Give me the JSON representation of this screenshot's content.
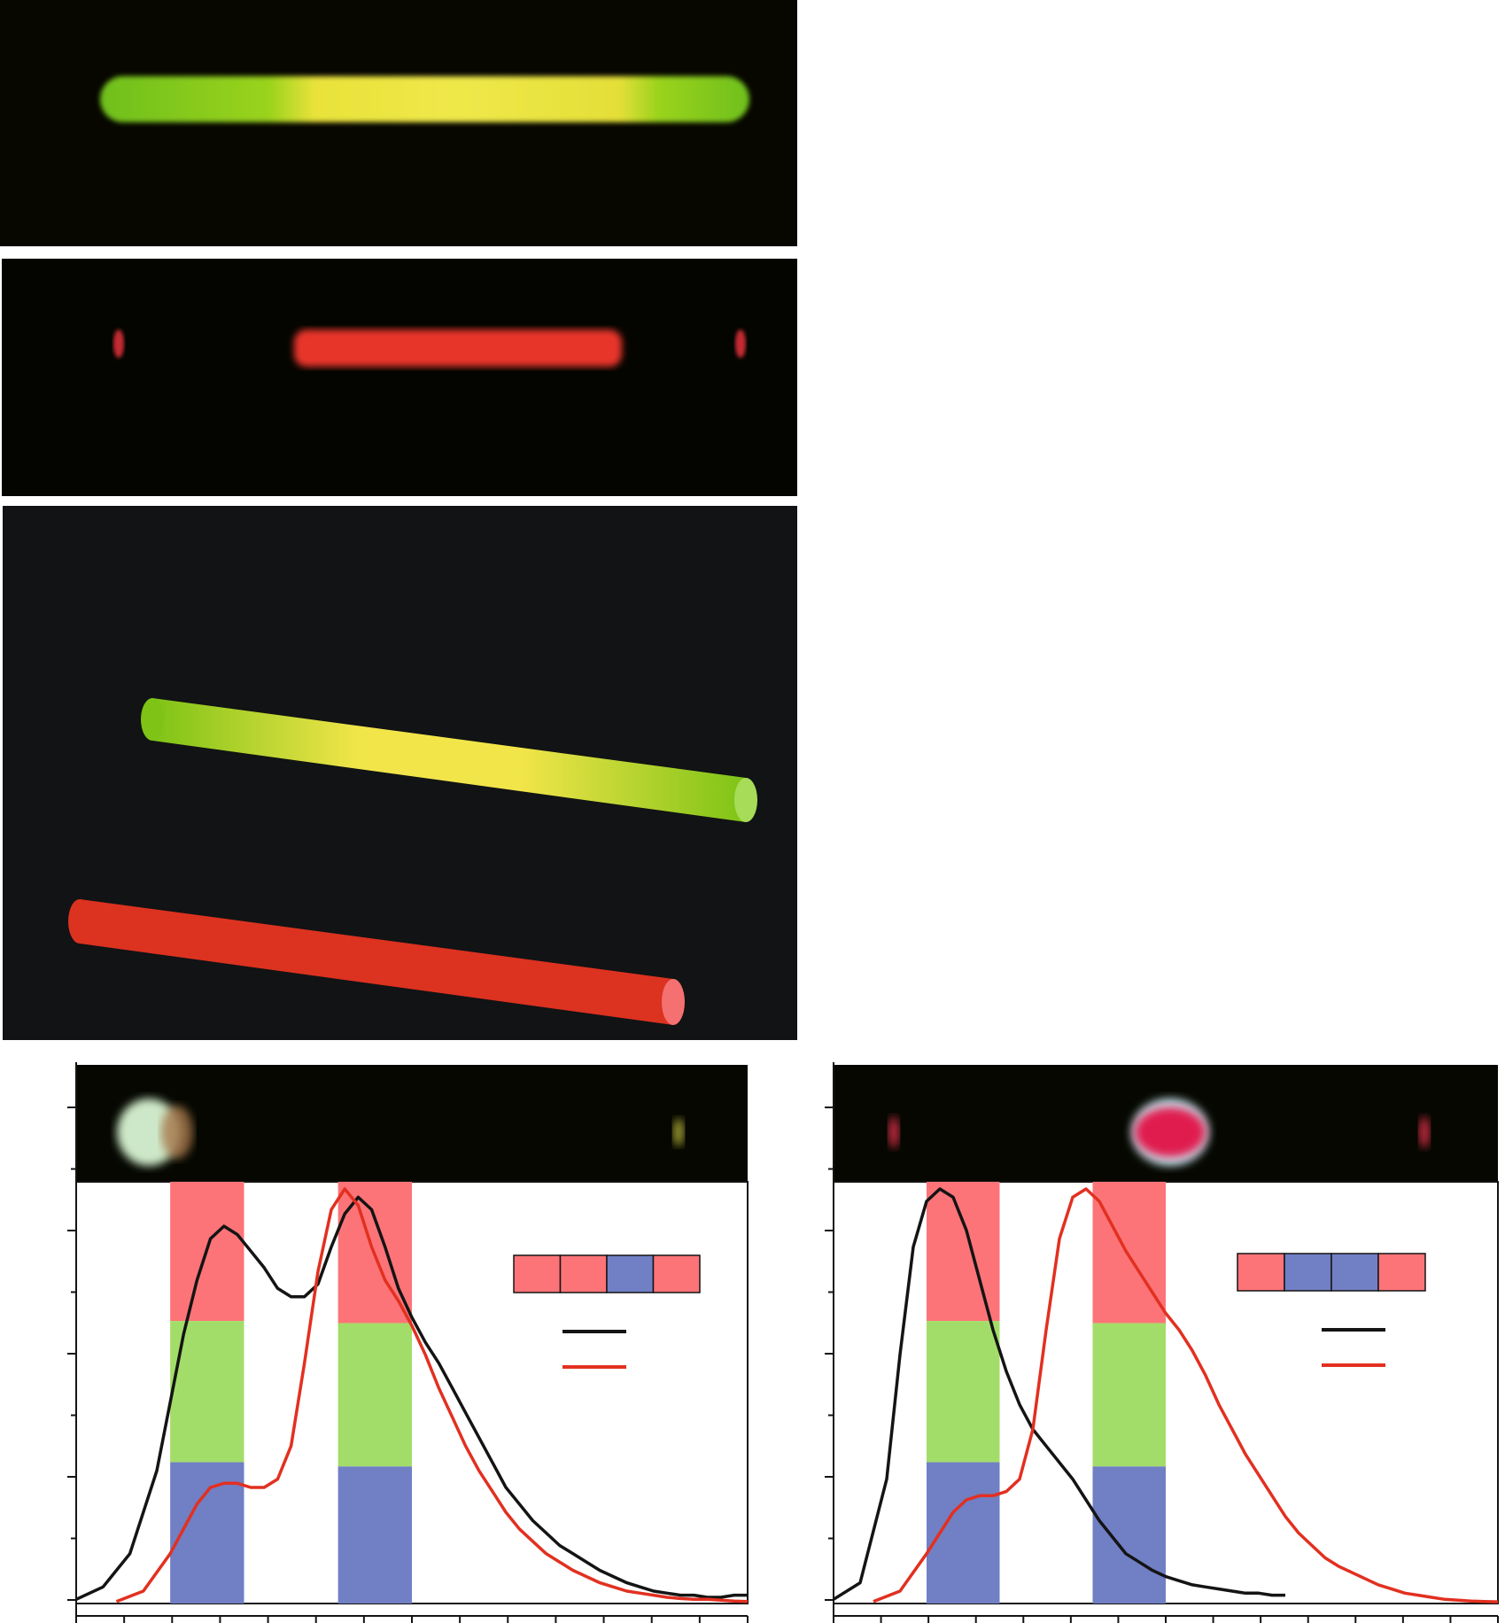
{
  "figure": {
    "panel_a": {
      "description_color": "#070700",
      "rod_gradient": [
        "#6fbf1a",
        "#9ad31c",
        "#e8e23a",
        "#efe84a",
        "#e8e23a",
        "#9ad31c",
        "#6fbf1a"
      ]
    },
    "panel_b": {
      "background": "#050500",
      "emission_color": "#e8342a"
    },
    "panel_c": {
      "background": "#111314",
      "rod_top_colors": [
        "#7ec316",
        "#f4e84a",
        "#7ec316"
      ],
      "rod_bottom_color": "#dc3220",
      "rod_bottom_cap": "#f57070"
    },
    "panel_d": {
      "inset_background": "#050700",
      "band_colors": {
        "red": "#fc7478",
        "green": "#a3dd69",
        "blue": "#717fc4"
      },
      "legend_bar": [
        "red",
        "red",
        "blue",
        "red"
      ],
      "series_colors": {
        "black": "#141414",
        "red": "#e23020"
      }
    },
    "panel_e": {
      "inset_background": "#050700",
      "band_colors": {
        "red": "#fc7478",
        "green": "#a3dd69",
        "blue": "#717fc4"
      },
      "legend_bar": [
        "red",
        "blue",
        "blue",
        "red"
      ],
      "series_colors": {
        "black": "#141414",
        "red": "#e23020"
      }
    }
  },
  "chart_data": [
    {
      "type": "line",
      "series": [
        {
          "color": "black",
          "x": [
            0,
            4,
            8,
            12,
            16,
            18,
            20,
            22,
            24,
            26,
            28,
            30,
            32,
            34,
            36,
            38,
            40,
            42,
            44,
            46,
            48,
            50,
            52,
            54,
            56,
            58,
            60,
            62,
            64,
            66,
            68,
            70,
            72,
            74,
            76,
            78,
            80,
            82,
            84,
            86,
            88,
            90,
            92,
            94,
            96,
            98,
            100
          ],
          "y": [
            0.01,
            0.04,
            0.12,
            0.32,
            0.65,
            0.78,
            0.88,
            0.91,
            0.89,
            0.85,
            0.81,
            0.76,
            0.74,
            0.74,
            0.77,
            0.86,
            0.94,
            0.98,
            0.95,
            0.86,
            0.76,
            0.69,
            0.63,
            0.58,
            0.52,
            0.46,
            0.4,
            0.34,
            0.28,
            0.24,
            0.2,
            0.17,
            0.14,
            0.12,
            0.1,
            0.08,
            0.065,
            0.05,
            0.04,
            0.03,
            0.025,
            0.02,
            0.02,
            0.015,
            0.015,
            0.02,
            0.02
          ]
        },
        {
          "color": "red",
          "x": [
            6,
            10,
            14,
            18,
            20,
            22,
            24,
            26,
            28,
            30,
            32,
            34,
            36,
            38,
            40,
            42,
            44,
            46,
            48,
            50,
            52,
            54,
            56,
            58,
            60,
            62,
            64,
            66,
            68,
            70,
            72,
            74,
            76,
            78,
            80,
            82,
            84,
            86,
            88,
            90,
            92,
            94,
            96,
            98,
            100
          ],
          "y": [
            0.005,
            0.03,
            0.12,
            0.24,
            0.28,
            0.29,
            0.29,
            0.28,
            0.28,
            0.3,
            0.38,
            0.58,
            0.8,
            0.95,
            1.0,
            0.96,
            0.86,
            0.78,
            0.73,
            0.67,
            0.6,
            0.52,
            0.45,
            0.38,
            0.32,
            0.27,
            0.22,
            0.18,
            0.15,
            0.12,
            0.1,
            0.08,
            0.065,
            0.05,
            0.04,
            0.03,
            0.025,
            0.02,
            0.015,
            0.012,
            0.01,
            0.01,
            0.008,
            0.006,
            0.005
          ]
        }
      ],
      "bands_x": [
        [
          14,
          25
        ],
        [
          39,
          50
        ]
      ]
    },
    {
      "type": "line",
      "series": [
        {
          "color": "black",
          "x": [
            0,
            4,
            8,
            10,
            12,
            14,
            16,
            18,
            20,
            22,
            24,
            26,
            28,
            30,
            32,
            34,
            36,
            38,
            40,
            42,
            44,
            46,
            48,
            50,
            52,
            54,
            56,
            58,
            60,
            62,
            64,
            66,
            68
          ],
          "y": [
            0.01,
            0.05,
            0.3,
            0.6,
            0.86,
            0.97,
            1.0,
            0.98,
            0.9,
            0.78,
            0.66,
            0.56,
            0.48,
            0.42,
            0.38,
            0.34,
            0.3,
            0.25,
            0.2,
            0.16,
            0.12,
            0.1,
            0.08,
            0.065,
            0.055,
            0.045,
            0.04,
            0.035,
            0.03,
            0.025,
            0.025,
            0.02,
            0.02
          ]
        },
        {
          "color": "red",
          "x": [
            6,
            10,
            14,
            18,
            20,
            22,
            24,
            26,
            28,
            30,
            32,
            34,
            36,
            38,
            40,
            42,
            44,
            46,
            48,
            50,
            52,
            54,
            56,
            58,
            60,
            62,
            64,
            66,
            68,
            70,
            72,
            74,
            76,
            78,
            80,
            82,
            84,
            86,
            88,
            90,
            92,
            94,
            96,
            98,
            100
          ],
          "y": [
            0.005,
            0.03,
            0.12,
            0.22,
            0.25,
            0.26,
            0.26,
            0.27,
            0.3,
            0.42,
            0.66,
            0.88,
            0.98,
            1.0,
            0.97,
            0.91,
            0.85,
            0.8,
            0.75,
            0.7,
            0.66,
            0.61,
            0.55,
            0.48,
            0.42,
            0.36,
            0.31,
            0.26,
            0.21,
            0.17,
            0.14,
            0.11,
            0.09,
            0.075,
            0.06,
            0.045,
            0.035,
            0.025,
            0.02,
            0.015,
            0.01,
            0.008,
            0.006,
            0.005,
            0.004
          ]
        }
      ],
      "bands_x": [
        [
          14,
          25
        ],
        [
          39,
          50
        ]
      ]
    }
  ]
}
